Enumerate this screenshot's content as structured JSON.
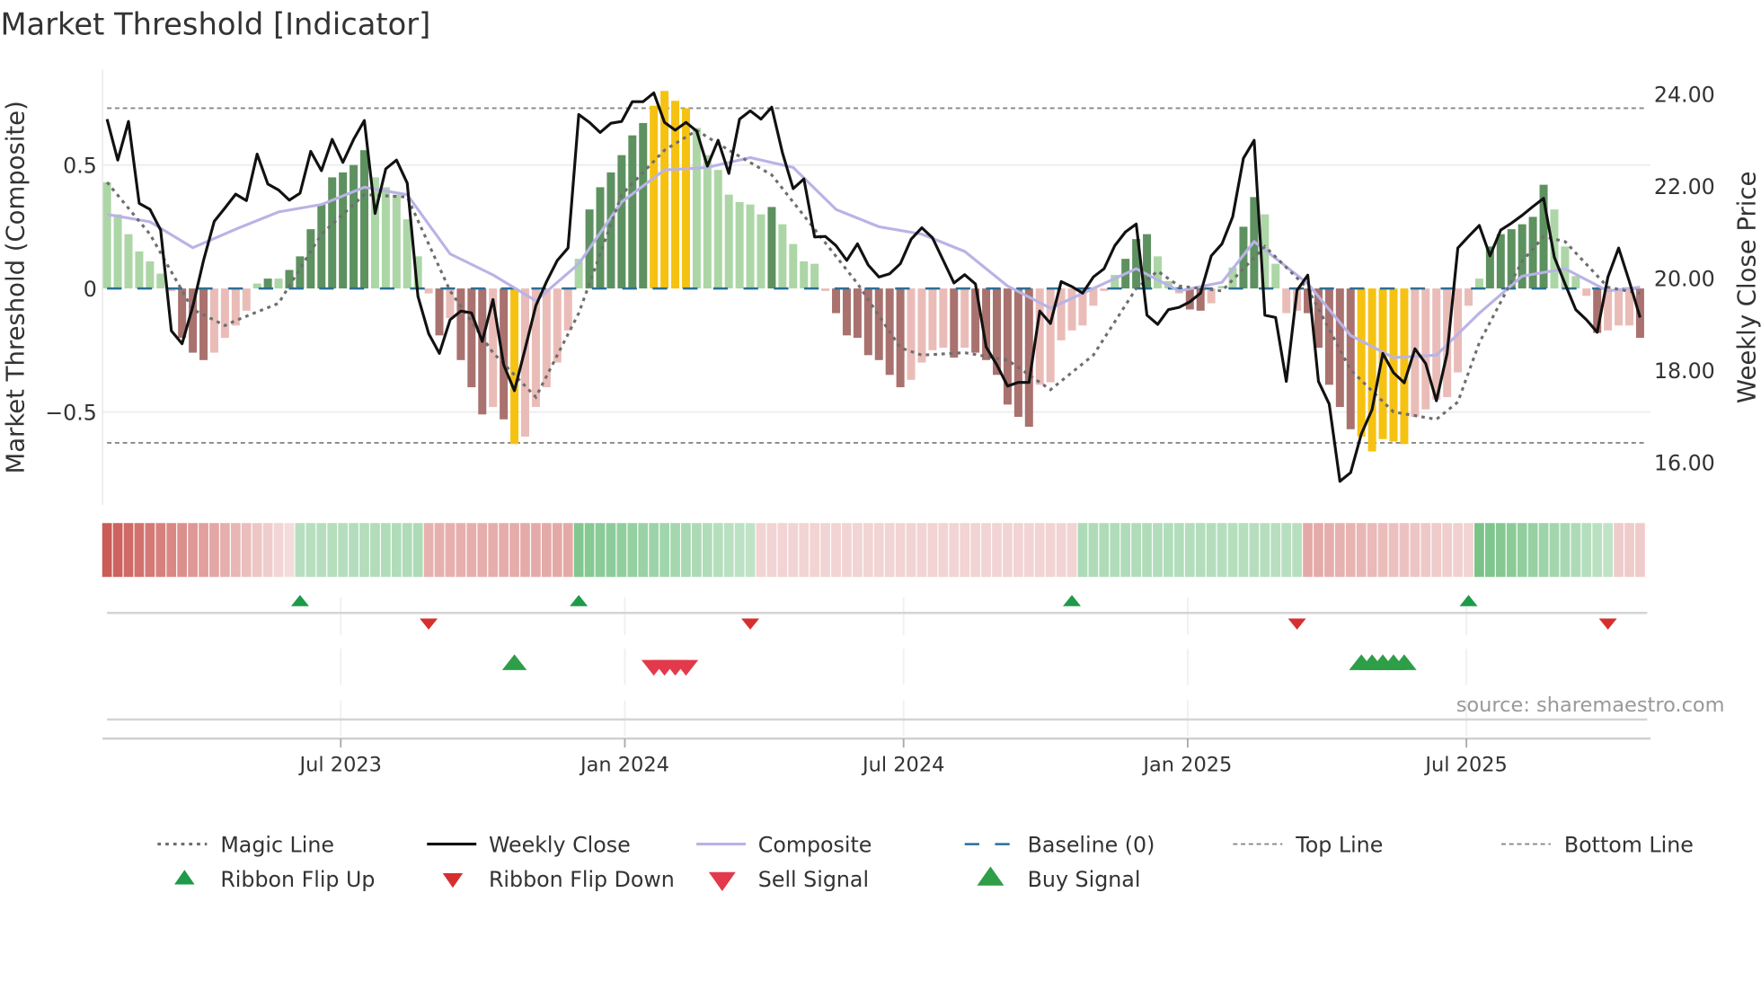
{
  "chart_data": {
    "type": "bar",
    "title": "Market Threshold [Indicator]",
    "ylabel": "Market Threshold (Composite)",
    "y2label": "Weekly Close Price",
    "source": "source: sharemaestro.com",
    "ylim": [
      -0.88,
      0.88
    ],
    "y2lim": [
      15.2,
      24.7
    ],
    "yticks": [
      {
        "v": 0.5,
        "label": "0.5"
      },
      {
        "v": 0,
        "label": "0"
      },
      {
        "v": -0.5,
        "label": "−0.5"
      }
    ],
    "y2ticks": [
      {
        "v": 24,
        "label": "24.00"
      },
      {
        "v": 22,
        "label": "22.00"
      },
      {
        "v": 20,
        "label": "20.00"
      },
      {
        "v": 18,
        "label": "18.00"
      },
      {
        "v": 16,
        "label": "16.00"
      }
    ],
    "xticks": [
      {
        "week": 21.8,
        "label": "Jul 2023"
      },
      {
        "week": 48.3,
        "label": "Jan 2024"
      },
      {
        "week": 74.3,
        "label": "Jul 2024"
      },
      {
        "week": 100.8,
        "label": "Jan 2025"
      },
      {
        "week": 126.8,
        "label": "Jul 2025"
      }
    ],
    "top_line": 0.73,
    "bottom_line": -0.625,
    "baseline": 0,
    "colors": {
      "dg": "#5e9160",
      "lg": "#acd6a6",
      "dr": "#a9726f",
      "pr": "#eabcb8",
      "y": "#f6c212",
      "close": "#111111",
      "composite": "#b9b3e6",
      "magic": "#6e6e6e",
      "baseline": "#2b6f97",
      "up": "#1e9a4a",
      "down": "#d62f2f",
      "sell": "#e23a4b",
      "buy": "#2e9e48"
    },
    "composite_bars": [
      0.43,
      0.3,
      0.22,
      0.15,
      0.11,
      0.06,
      -0.01,
      -0.2,
      -0.26,
      -0.29,
      -0.26,
      -0.2,
      -0.15,
      -0.09,
      0.02,
      0.04,
      0.04,
      0.075,
      0.13,
      0.24,
      0.34,
      0.45,
      0.47,
      0.5,
      0.56,
      0.45,
      0.41,
      0.38,
      0.28,
      0.13,
      -0.02,
      -0.19,
      -0.12,
      -0.29,
      -0.4,
      -0.51,
      -0.48,
      -0.53,
      -0.63,
      -0.6,
      -0.48,
      -0.4,
      -0.3,
      -0.17,
      0.12,
      0.32,
      0.41,
      0.47,
      0.54,
      0.62,
      0.67,
      0.74,
      0.8,
      0.76,
      0.73,
      0.65,
      0.54,
      0.48,
      0.38,
      0.35,
      0.34,
      0.3,
      0.33,
      0.26,
      0.18,
      0.11,
      0.1,
      -0.01,
      -0.1,
      -0.19,
      -0.2,
      -0.27,
      -0.29,
      -0.35,
      -0.4,
      -0.37,
      -0.3,
      -0.25,
      -0.24,
      -0.28,
      -0.24,
      -0.26,
      -0.29,
      -0.35,
      -0.47,
      -0.52,
      -0.56,
      -0.39,
      -0.38,
      -0.21,
      -0.17,
      -0.15,
      -0.07,
      -0.01,
      0.055,
      0.12,
      0.2,
      0.22,
      0.13,
      0.03,
      -0.02,
      -0.085,
      -0.09,
      -0.06,
      0.01,
      0.085,
      0.25,
      0.37,
      0.3,
      0.1,
      -0.1,
      -0.09,
      -0.1,
      -0.24,
      -0.39,
      -0.48,
      -0.57,
      -0.6,
      -0.66,
      -0.61,
      -0.62,
      -0.63,
      -0.52,
      -0.49,
      -0.45,
      -0.44,
      -0.34,
      -0.07,
      0.04,
      0.17,
      0.22,
      0.24,
      0.26,
      0.29,
      0.42,
      0.32,
      0.17,
      0.05,
      -0.03,
      -0.18,
      -0.17,
      -0.15,
      -0.15,
      -0.2
    ],
    "bar_states": [
      "lg",
      "lg",
      "lg",
      "lg",
      "lg",
      "lg",
      "pr",
      "dr",
      "dr",
      "dr",
      "pr",
      "pr",
      "pr",
      "pr",
      "lg",
      "dg",
      "lg",
      "dg",
      "dg",
      "dg",
      "dg",
      "dg",
      "dg",
      "dg",
      "dg",
      "lg",
      "lg",
      "lg",
      "lg",
      "lg",
      "pr",
      "dr",
      "pr",
      "dr",
      "dr",
      "dr",
      "pr",
      "dr",
      "y",
      "pr",
      "pr",
      "pr",
      "pr",
      "pr",
      "lg",
      "dg",
      "dg",
      "dg",
      "dg",
      "dg",
      "dg",
      "y",
      "y",
      "y",
      "y",
      "lg",
      "lg",
      "lg",
      "lg",
      "lg",
      "lg",
      "lg",
      "dg",
      "lg",
      "lg",
      "lg",
      "lg",
      "pr",
      "dr",
      "dr",
      "dr",
      "dr",
      "dr",
      "dr",
      "dr",
      "pr",
      "pr",
      "pr",
      "pr",
      "dr",
      "pr",
      "dr",
      "dr",
      "dr",
      "dr",
      "dr",
      "dr",
      "pr",
      "pr",
      "pr",
      "pr",
      "pr",
      "pr",
      "pr",
      "lg",
      "dg",
      "dg",
      "dg",
      "lg",
      "lg",
      "pr",
      "dr",
      "dr",
      "pr",
      "lg",
      "lg",
      "dg",
      "dg",
      "lg",
      "lg",
      "pr",
      "pr",
      "dr",
      "dr",
      "dr",
      "dr",
      "dr",
      "y",
      "y",
      "y",
      "y",
      "y",
      "pr",
      "pr",
      "pr",
      "pr",
      "pr",
      "pr",
      "lg",
      "dg",
      "dg",
      "dg",
      "dg",
      "dg",
      "dg",
      "lg",
      "lg",
      "lg",
      "pr",
      "dr",
      "pr",
      "pr",
      "pr",
      "dr"
    ],
    "weekly_close": [
      23.46,
      22.57,
      23.41,
      21.63,
      21.5,
      21.05,
      18.86,
      18.58,
      19.39,
      20.39,
      21.24,
      21.53,
      21.83,
      21.69,
      22.7,
      22.05,
      21.92,
      21.7,
      21.85,
      22.76,
      22.34,
      23.02,
      22.52,
      23.02,
      23.43,
      21.41,
      22.38,
      22.57,
      22.07,
      19.61,
      18.8,
      18.37,
      19.1,
      19.29,
      19.25,
      18.63,
      19.54,
      18.12,
      17.56,
      18.47,
      19.41,
      19.93,
      20.39,
      20.66,
      23.56,
      23.39,
      23.17,
      23.37,
      23.41,
      23.84,
      23.84,
      24.03,
      23.39,
      23.22,
      23.39,
      23.2,
      22.44,
      23.0,
      22.28,
      23.46,
      23.64,
      23.46,
      23.72,
      22.73,
      21.95,
      22.16,
      20.9,
      20.91,
      20.71,
      20.39,
      20.75,
      20.29,
      20.03,
      20.1,
      20.32,
      20.85,
      21.1,
      20.88,
      20.39,
      19.9,
      20.08,
      19.88,
      18.51,
      18.12,
      17.66,
      17.74,
      17.74,
      19.29,
      19.02,
      19.93,
      19.82,
      19.68,
      20.03,
      20.21,
      20.71,
      21.01,
      21.18,
      19.2,
      19.0,
      19.32,
      19.37,
      19.49,
      19.68,
      20.49,
      20.75,
      21.34,
      22.61,
      23.0,
      19.2,
      19.15,
      17.76,
      19.74,
      20.07,
      17.76,
      17.27,
      15.59,
      15.78,
      16.62,
      17.15,
      18.37,
      17.95,
      17.73,
      18.47,
      18.15,
      17.34,
      18.37,
      20.66,
      20.91,
      21.15,
      20.49,
      21.05,
      21.2,
      21.37,
      21.56,
      21.74,
      20.46,
      19.88,
      19.32,
      19.1,
      18.83,
      20.03,
      20.66,
      19.93,
      19.15
    ],
    "composite_line": [
      [
        0,
        0.3
      ],
      [
        4,
        0.27
      ],
      [
        8,
        0.165
      ],
      [
        12,
        0.24
      ],
      [
        16,
        0.31
      ],
      [
        20,
        0.34
      ],
      [
        24,
        0.41
      ],
      [
        28,
        0.38
      ],
      [
        32,
        0.14
      ],
      [
        36,
        0.055
      ],
      [
        40,
        -0.05
      ],
      [
        44,
        0.1
      ],
      [
        48,
        0.35
      ],
      [
        52,
        0.48
      ],
      [
        56,
        0.49
      ],
      [
        60,
        0.53
      ],
      [
        64,
        0.49
      ],
      [
        68,
        0.32
      ],
      [
        72,
        0.25
      ],
      [
        76,
        0.22
      ],
      [
        80,
        0.15
      ],
      [
        84,
        0.01
      ],
      [
        88,
        -0.08
      ],
      [
        92,
        0.0
      ],
      [
        96,
        0.08
      ],
      [
        100,
        -0.01
      ],
      [
        104,
        0.025
      ],
      [
        107,
        0.19
      ],
      [
        112,
        0.02
      ],
      [
        116,
        -0.19
      ],
      [
        120,
        -0.28
      ],
      [
        124,
        -0.27
      ],
      [
        128,
        -0.1
      ],
      [
        132,
        0.05
      ],
      [
        136,
        0.08
      ],
      [
        140,
        -0.01
      ],
      [
        143,
        0.005
      ]
    ],
    "magic_line": [
      [
        0,
        0.43
      ],
      [
        4,
        0.22
      ],
      [
        8,
        -0.085
      ],
      [
        11,
        -0.15
      ],
      [
        12,
        -0.13
      ],
      [
        16,
        -0.06
      ],
      [
        20,
        0.22
      ],
      [
        24,
        0.38
      ],
      [
        28,
        0.37
      ],
      [
        32,
        -0.01
      ],
      [
        36,
        -0.26
      ],
      [
        40,
        -0.44
      ],
      [
        44,
        -0.1
      ],
      [
        48,
        0.38
      ],
      [
        52,
        0.56
      ],
      [
        55,
        0.64
      ],
      [
        58,
        0.56
      ],
      [
        62,
        0.46
      ],
      [
        66,
        0.24
      ],
      [
        70,
        0.02
      ],
      [
        74,
        -0.24
      ],
      [
        76,
        -0.27
      ],
      [
        80,
        -0.26
      ],
      [
        84,
        -0.29
      ],
      [
        88,
        -0.41
      ],
      [
        92,
        -0.27
      ],
      [
        96,
        0.0
      ],
      [
        98,
        0.07
      ],
      [
        100,
        0.01
      ],
      [
        104,
        -0.01
      ],
      [
        108,
        0.17
      ],
      [
        112,
        0.0
      ],
      [
        116,
        -0.33
      ],
      [
        120,
        -0.5
      ],
      [
        124,
        -0.53
      ],
      [
        126,
        -0.46
      ],
      [
        128,
        -0.22
      ],
      [
        132,
        0.11
      ],
      [
        134,
        0.21
      ],
      [
        136,
        0.19
      ],
      [
        140,
        0.005
      ],
      [
        143,
        -0.02
      ]
    ],
    "ribbon_segments": [
      {
        "dir": "down",
        "from": 0,
        "to": 17,
        "start": 0.95,
        "end": 0.2
      },
      {
        "dir": "up",
        "from": 18,
        "to": 29,
        "start": 0.4,
        "end": 0.45
      },
      {
        "dir": "down",
        "from": 30,
        "to": 43,
        "start": 0.45,
        "end": 0.5
      },
      {
        "dir": "up",
        "from": 44,
        "to": 60,
        "start": 0.7,
        "end": 0.35
      },
      {
        "dir": "down",
        "from": 61,
        "to": 90,
        "start": 0.25,
        "end": 0.25
      },
      {
        "dir": "up",
        "from": 91,
        "to": 111,
        "start": 0.45,
        "end": 0.4
      },
      {
        "dir": "down",
        "from": 112,
        "to": 127,
        "start": 0.5,
        "end": 0.25
      },
      {
        "dir": "up",
        "from": 128,
        "to": 140,
        "start": 0.75,
        "end": 0.35
      },
      {
        "dir": "down",
        "from": 141,
        "to": 143,
        "start": 0.3,
        "end": 0.3
      }
    ],
    "ribbon_flip_up": [
      18,
      44,
      90,
      127
    ],
    "ribbon_flip_down": [
      30,
      60,
      111,
      140
    ],
    "buy_signals": [
      38,
      117,
      118,
      119,
      120,
      121
    ],
    "sell_signals": [
      51,
      52,
      53,
      54
    ],
    "legend": {
      "magic": "Magic Line",
      "close": "Weekly Close",
      "composite": "Composite",
      "baseline": "Baseline (0)",
      "top": "Top Line",
      "bottom": "Bottom Line",
      "flip_up": "Ribbon Flip Up",
      "flip_down": "Ribbon Flip Down",
      "sell": "Sell Signal",
      "buy": "Buy Signal"
    }
  }
}
